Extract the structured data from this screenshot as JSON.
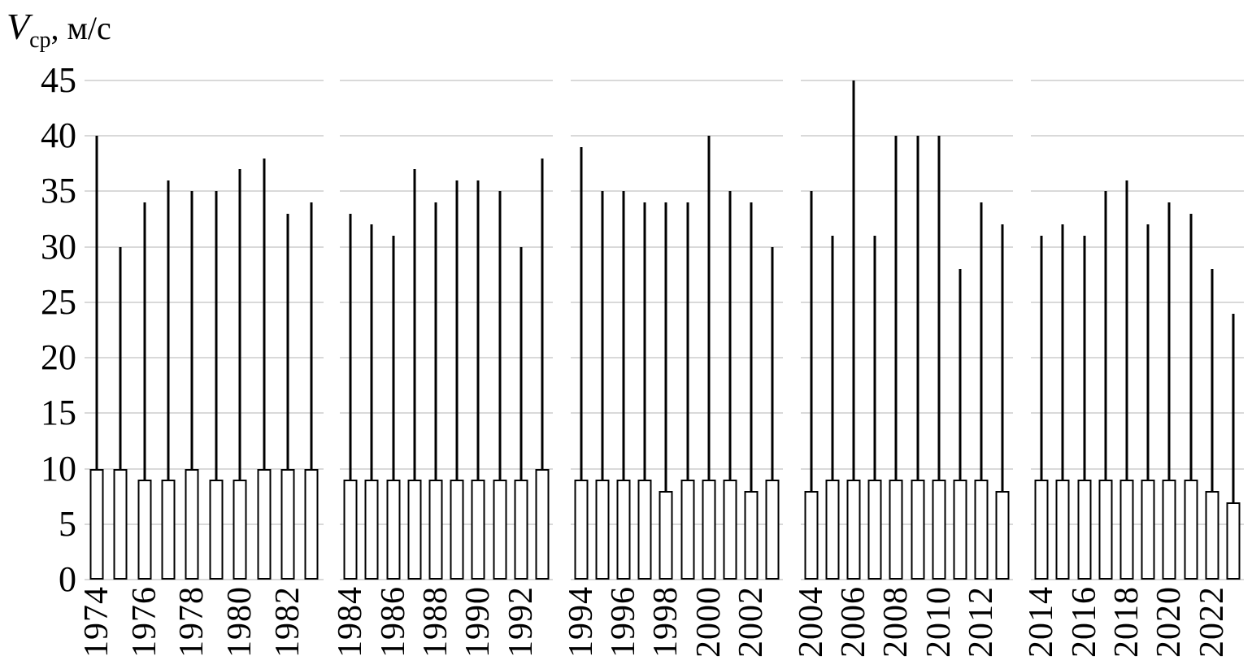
{
  "title": {
    "symbol": "V",
    "subscript": "ср",
    "units": ", м/с"
  },
  "chart_data": {
    "type": "bar",
    "ylabel": "Vср, м/с",
    "ylim": [
      0,
      45
    ],
    "yticks": [
      0,
      5,
      10,
      15,
      20,
      25,
      30,
      35,
      40,
      45
    ],
    "grid": true,
    "legend": "none",
    "description": "White outlined bars with thin black whisker lines extending to maximum values; five decade panels sharing one y-axis",
    "colors": {
      "bar_fill": "#ffffff",
      "bar_border": "#000000",
      "whisker": "#000000",
      "gridline": "#d9d9d9"
    },
    "groups": [
      {
        "points": [
          {
            "year": 1974,
            "label": "1974",
            "bar": 10,
            "max": 40
          },
          {
            "year": 1975,
            "label": "",
            "bar": 10,
            "max": 30
          },
          {
            "year": 1976,
            "label": "1976",
            "bar": 9,
            "max": 34
          },
          {
            "year": 1977,
            "label": "",
            "bar": 9,
            "max": 36
          },
          {
            "year": 1978,
            "label": "1978",
            "bar": 10,
            "max": 35
          },
          {
            "year": 1979,
            "label": "",
            "bar": 9,
            "max": 35
          },
          {
            "year": 1980,
            "label": "1980",
            "bar": 9,
            "max": 37
          },
          {
            "year": 1981,
            "label": "",
            "bar": 10,
            "max": 38
          },
          {
            "year": 1982,
            "label": "1982",
            "bar": 10,
            "max": 33
          },
          {
            "year": 1983,
            "label": "",
            "bar": 10,
            "max": 34
          }
        ]
      },
      {
        "points": [
          {
            "year": 1984,
            "label": "1984",
            "bar": 9,
            "max": 33
          },
          {
            "year": 1985,
            "label": "",
            "bar": 9,
            "max": 32
          },
          {
            "year": 1986,
            "label": "1986",
            "bar": 9,
            "max": 31
          },
          {
            "year": 1987,
            "label": "",
            "bar": 9,
            "max": 37
          },
          {
            "year": 1988,
            "label": "1988",
            "bar": 9,
            "max": 34
          },
          {
            "year": 1989,
            "label": "",
            "bar": 9,
            "max": 36
          },
          {
            "year": 1990,
            "label": "1990",
            "bar": 9,
            "max": 36
          },
          {
            "year": 1991,
            "label": "",
            "bar": 9,
            "max": 35
          },
          {
            "year": 1992,
            "label": "1992",
            "bar": 9,
            "max": 30
          },
          {
            "year": 1993,
            "label": "",
            "bar": 10,
            "max": 38
          }
        ]
      },
      {
        "points": [
          {
            "year": 1994,
            "label": "1994",
            "bar": 9,
            "max": 39
          },
          {
            "year": 1995,
            "label": "",
            "bar": 9,
            "max": 35
          },
          {
            "year": 1996,
            "label": "1996",
            "bar": 9,
            "max": 35
          },
          {
            "year": 1997,
            "label": "",
            "bar": 9,
            "max": 34
          },
          {
            "year": 1998,
            "label": "1998",
            "bar": 8,
            "max": 34
          },
          {
            "year": 1999,
            "label": "",
            "bar": 9,
            "max": 34
          },
          {
            "year": 2000,
            "label": "2000",
            "bar": 9,
            "max": 40
          },
          {
            "year": 2001,
            "label": "",
            "bar": 9,
            "max": 35
          },
          {
            "year": 2002,
            "label": "2002",
            "bar": 8,
            "max": 34
          },
          {
            "year": 2003,
            "label": "",
            "bar": 9,
            "max": 30
          }
        ]
      },
      {
        "points": [
          {
            "year": 2004,
            "label": "2004",
            "bar": 8,
            "max": 35
          },
          {
            "year": 2005,
            "label": "",
            "bar": 9,
            "max": 31
          },
          {
            "year": 2006,
            "label": "2006",
            "bar": 9,
            "max": 45
          },
          {
            "year": 2007,
            "label": "",
            "bar": 9,
            "max": 31
          },
          {
            "year": 2008,
            "label": "2008",
            "bar": 9,
            "max": 40
          },
          {
            "year": 2009,
            "label": "",
            "bar": 9,
            "max": 40
          },
          {
            "year": 2010,
            "label": "2010",
            "bar": 9,
            "max": 40
          },
          {
            "year": 2011,
            "label": "",
            "bar": 9,
            "max": 28
          },
          {
            "year": 2012,
            "label": "2012",
            "bar": 9,
            "max": 34
          },
          {
            "year": 2013,
            "label": "",
            "bar": 8,
            "max": 32
          }
        ]
      },
      {
        "points": [
          {
            "year": 2014,
            "label": "2014",
            "bar": 9,
            "max": 31
          },
          {
            "year": 2015,
            "label": "",
            "bar": 9,
            "max": 32
          },
          {
            "year": 2016,
            "label": "2016",
            "bar": 9,
            "max": 31
          },
          {
            "year": 2017,
            "label": "",
            "bar": 9,
            "max": 35
          },
          {
            "year": 2018,
            "label": "2018",
            "bar": 9,
            "max": 36
          },
          {
            "year": 2019,
            "label": "",
            "bar": 9,
            "max": 32
          },
          {
            "year": 2020,
            "label": "2020",
            "bar": 9,
            "max": 34
          },
          {
            "year": 2021,
            "label": "",
            "bar": 9,
            "max": 33
          },
          {
            "year": 2022,
            "label": "2022",
            "bar": 8,
            "max": 28
          },
          {
            "year": 2023,
            "label": "",
            "bar": 7,
            "max": 24
          }
        ]
      }
    ]
  }
}
